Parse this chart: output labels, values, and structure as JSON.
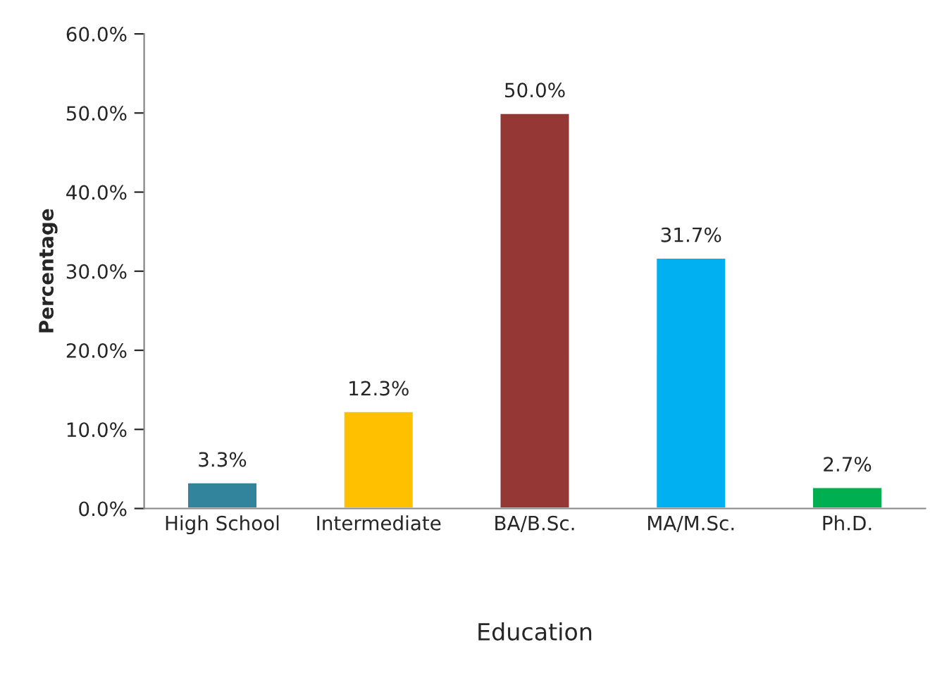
{
  "chart_data": {
    "type": "bar",
    "categories": [
      "High School",
      "Intermediate",
      "BA/B.Sc.",
      "MA/M.Sc.",
      "Ph.D."
    ],
    "values": [
      3.3,
      12.3,
      50.0,
      31.7,
      2.7
    ],
    "colors": [
      "#31849b",
      "#ffc000",
      "#953735",
      "#00b0f0",
      "#00b050"
    ],
    "value_labels": [
      "3.3%",
      "12.3%",
      "50.0%",
      "31.7%",
      "2.7%"
    ],
    "xlabel": "Education",
    "ylabel": "Percentage",
    "ylim": [
      0,
      60
    ],
    "yticks": [
      {
        "value": 0,
        "label": "0.0%"
      },
      {
        "value": 10,
        "label": "10.0%"
      },
      {
        "value": 20,
        "label": "20.0%"
      },
      {
        "value": 30,
        "label": "30.0%"
      },
      {
        "value": 40,
        "label": "40.0%"
      },
      {
        "value": 50,
        "label": "50.0%"
      },
      {
        "value": 60,
        "label": "60.0%"
      }
    ],
    "grid": false,
    "legend": false
  }
}
